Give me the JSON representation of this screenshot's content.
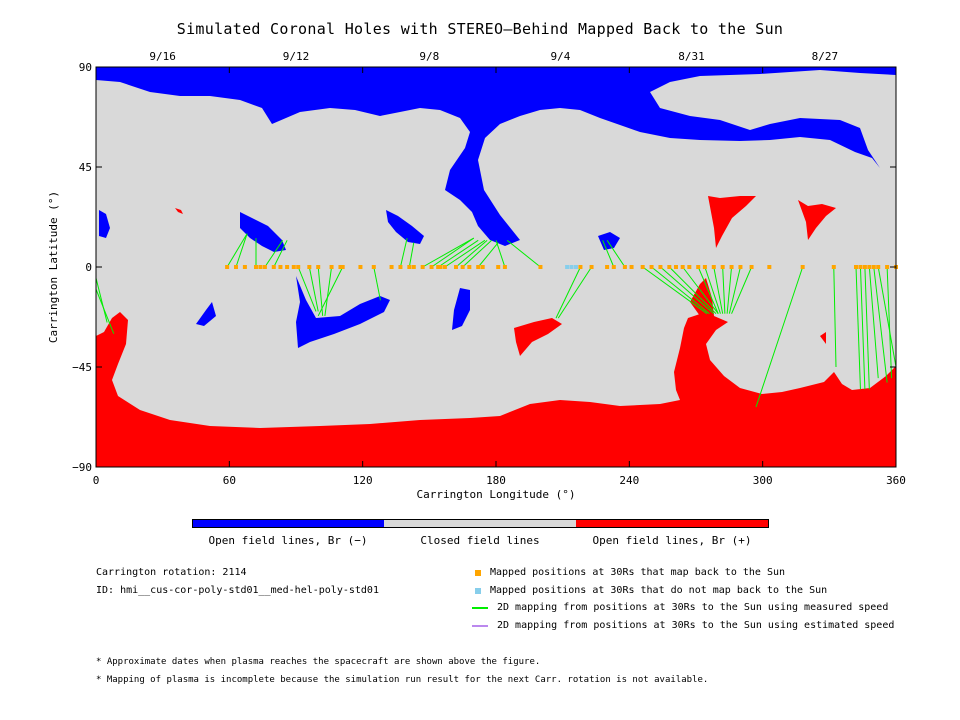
{
  "title": "Simulated Coronal Holes with STEREO–Behind Mapped Back to the Sun",
  "chart_data": {
    "type": "scatter",
    "xlabel": "Carrington Longitude (°)",
    "ylabel": "Carrington Latitude (°)",
    "xlim": [
      0,
      360
    ],
    "ylim": [
      -90,
      90
    ],
    "x_ticks": [
      "0",
      "60",
      "120",
      "180",
      "240",
      "300",
      "360"
    ],
    "y_ticks": [
      "90",
      "45",
      "0",
      "−45",
      "−90"
    ],
    "top_axis_dates": [
      {
        "label": "9/16",
        "lon": 30
      },
      {
        "label": "9/12",
        "lon": 90
      },
      {
        "label": "9/8",
        "lon": 150
      },
      {
        "label": "9/4",
        "lon": 209
      },
      {
        "label": "8/31",
        "lon": 268
      },
      {
        "label": "8/27",
        "lon": 328
      }
    ],
    "colors": {
      "open_negative": "#0000ff",
      "closed": "#d9d9d9",
      "open_positive": "#ff0000",
      "mapped": "#ffa500",
      "unmapped": "#87ceeb",
      "measured": "#00ee00",
      "estimated": "#bb88ee"
    },
    "mapped_points_lon": [
      59,
      63,
      67,
      72,
      74,
      76,
      80,
      83,
      86,
      89,
      91,
      96,
      100,
      106,
      110,
      111,
      119,
      125,
      133,
      137,
      141,
      143,
      147,
      151,
      154,
      155,
      157,
      162,
      165,
      168,
      172,
      174,
      181,
      184,
      200,
      218,
      223,
      230,
      233,
      238,
      241,
      246,
      250,
      254,
      258,
      261,
      264,
      267,
      271,
      274,
      278,
      282,
      286,
      290,
      295,
      303,
      318,
      332,
      342,
      344,
      346,
      348,
      350,
      352,
      356,
      360
    ],
    "unmapped_points_lon": [
      212,
      214,
      216
    ],
    "measured_mapping_lines": [
      [
        59,
        0,
        68,
        15
      ],
      [
        63,
        0,
        68,
        15
      ],
      [
        72,
        0,
        72,
        13
      ],
      [
        76,
        0,
        84,
        12
      ],
      [
        80,
        0,
        86,
        12
      ],
      [
        91,
        0,
        99,
        -20
      ],
      [
        96,
        0,
        100,
        -20
      ],
      [
        100,
        0,
        102,
        -22
      ],
      [
        106,
        0,
        103,
        -22
      ],
      [
        111,
        0,
        100,
        -22
      ],
      [
        125,
        0,
        128,
        -15
      ],
      [
        137,
        0,
        140,
        13
      ],
      [
        141,
        0,
        143,
        11
      ],
      [
        147,
        0,
        170,
        13
      ],
      [
        151,
        0,
        170,
        13
      ],
      [
        154,
        0,
        172,
        12
      ],
      [
        157,
        0,
        175,
        12
      ],
      [
        162,
        0,
        176,
        12
      ],
      [
        165,
        0,
        178,
        12
      ],
      [
        172,
        0,
        181,
        11
      ],
      [
        184,
        0,
        180,
        12
      ],
      [
        200,
        0,
        185,
        12
      ],
      [
        218,
        0,
        207,
        -23
      ],
      [
        223,
        0,
        208,
        -23
      ],
      [
        233,
        0,
        228,
        12
      ],
      [
        238,
        0,
        230,
        12
      ],
      [
        246,
        0,
        275,
        -21
      ],
      [
        250,
        0,
        276,
        -21
      ],
      [
        254,
        0,
        278,
        -21
      ],
      [
        258,
        0,
        279,
        -21
      ],
      [
        264,
        0,
        280,
        -21
      ],
      [
        271,
        0,
        280,
        -21
      ],
      [
        274,
        0,
        281,
        -21
      ],
      [
        278,
        0,
        282,
        -21
      ],
      [
        282,
        0,
        283,
        -21
      ],
      [
        286,
        0,
        284,
        -21
      ],
      [
        290,
        0,
        285,
        -21
      ],
      [
        295,
        0,
        286,
        -21
      ],
      [
        318,
        0,
        297,
        -63
      ],
      [
        332,
        0,
        333,
        -45
      ],
      [
        342,
        0,
        344,
        -55
      ],
      [
        344,
        0,
        346,
        -55
      ],
      [
        346,
        0,
        348,
        -55
      ],
      [
        348,
        0,
        352,
        -50
      ],
      [
        350,
        0,
        356,
        -52
      ],
      [
        352,
        0,
        360,
        -45
      ],
      [
        356,
        0,
        358,
        -50
      ],
      [
        360,
        0,
        360,
        -15
      ],
      [
        0,
        -5,
        5,
        -25
      ],
      [
        0,
        -10,
        8,
        -30
      ]
    ]
  },
  "colorbar": {
    "labels": [
      "Open field lines, Br (−)",
      "Closed field lines",
      "Open field lines, Br (+)"
    ],
    "colors": [
      "#0000ff",
      "#d9d9d9",
      "#ff0000"
    ]
  },
  "info": {
    "rotation": "Carrington rotation: 2114",
    "id": "ID: hmi__cus-cor-poly-std01__med-hel-poly-std01"
  },
  "legend": [
    {
      "kind": "square",
      "color": "#ffa500",
      "label": "Mapped positions at 30Rs that map back to the Sun"
    },
    {
      "kind": "square",
      "color": "#87ceeb",
      "label": "Mapped positions at 30Rs that do not map back to the Sun"
    },
    {
      "kind": "line",
      "color": "#00ee00",
      "label": "2D mapping from positions at 30Rs to the Sun using measured speed"
    },
    {
      "kind": "line",
      "color": "#bb88ee",
      "label": "2D mapping from positions at 30Rs to the Sun using estimated speed"
    }
  ],
  "notes": [
    "* Approximate dates when plasma reaches the spacecraft are shown above the figure.",
    "* Mapping of plasma is incomplete because the simulation run result for the next Carr. rotation is not available."
  ]
}
